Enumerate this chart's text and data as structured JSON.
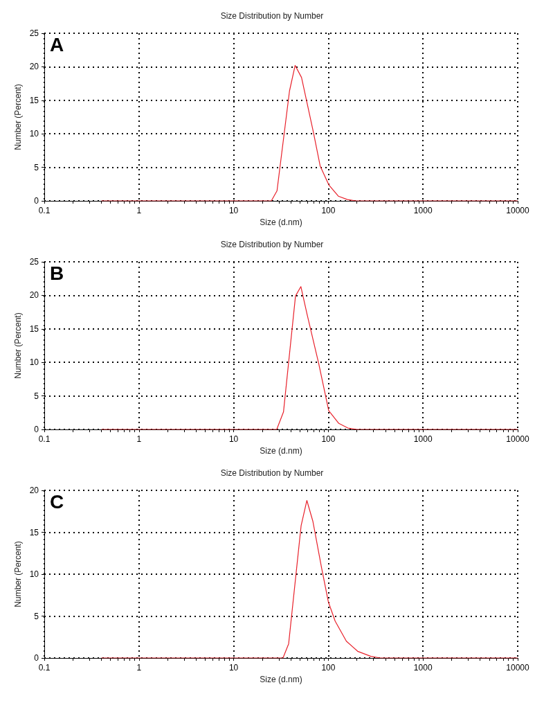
{
  "chart_data": [
    {
      "type": "line",
      "title": "Size Distribution by Number",
      "xlabel": "Size (d.nm)",
      "ylabel": "Number (Percent)",
      "annotations": [
        "A"
      ],
      "log": "x",
      "grid": true,
      "marker": "none",
      "line_style": "solid",
      "xlim": [
        0.1,
        10000
      ],
      "xticks": [
        0.1,
        1,
        10,
        100,
        1000,
        10000
      ],
      "ylim": [
        0,
        25
      ],
      "yticks": [
        0,
        5,
        10,
        15,
        20,
        25
      ],
      "series": [
        {
          "color": "#e8202a",
          "x": [
            0.4,
            25,
            28.7,
            38.9,
            44.6,
            52.1,
            69.4,
            82,
            101,
            127.5,
            159,
            197,
            10000
          ],
          "values": [
            0,
            0,
            1.5,
            16.4,
            20.2,
            18.4,
            10.3,
            5.2,
            2.4,
            0.7,
            0.2,
            0,
            0
          ]
        }
      ]
    },
    {
      "type": "line",
      "title": "Size Distribution by Number",
      "xlabel": "Size (d.nm)",
      "ylabel": "Number (Percent)",
      "annotations": [
        "B"
      ],
      "log": "x",
      "grid": true,
      "marker": "none",
      "line_style": "solid",
      "xlim": [
        0.1,
        10000
      ],
      "xticks": [
        0.1,
        1,
        10,
        100,
        1000,
        10000
      ],
      "ylim": [
        0,
        25
      ],
      "yticks": [
        0,
        5,
        10,
        15,
        20,
        25
      ],
      "series": [
        {
          "color": "#e8202a",
          "x": [
            0.4,
            28.5,
            33.6,
            45,
            51.3,
            60,
            78.9,
            100.9,
            129,
            161,
            201,
            10000
          ],
          "values": [
            0,
            0,
            2.6,
            19.9,
            21.3,
            17,
            9.9,
            2.8,
            0.9,
            0.2,
            0,
            0
          ]
        }
      ]
    },
    {
      "type": "line",
      "title": "Size Distribution by Number",
      "xlabel": "Size (d.nm)",
      "ylabel": "Number (Percent)",
      "annotations": [
        "C"
      ],
      "log": "x",
      "grid": true,
      "marker": "none",
      "line_style": "solid",
      "xlim": [
        0.1,
        10000
      ],
      "xticks": [
        0.1,
        1,
        10,
        100,
        1000,
        10000
      ],
      "ylim": [
        0,
        20
      ],
      "yticks": [
        0,
        5,
        10,
        15,
        20
      ],
      "series": [
        {
          "color": "#e8202a",
          "x": [
            0.4,
            33.2,
            38.1,
            51.6,
            59.3,
            68.7,
            84.7,
            100,
            118,
            155,
            204,
            281,
            352,
            10000
          ],
          "values": [
            0,
            0,
            1.7,
            15.8,
            18.8,
            16.3,
            10.8,
            6.7,
            4.4,
            2.0,
            0.8,
            0.2,
            0,
            0
          ]
        }
      ]
    }
  ]
}
